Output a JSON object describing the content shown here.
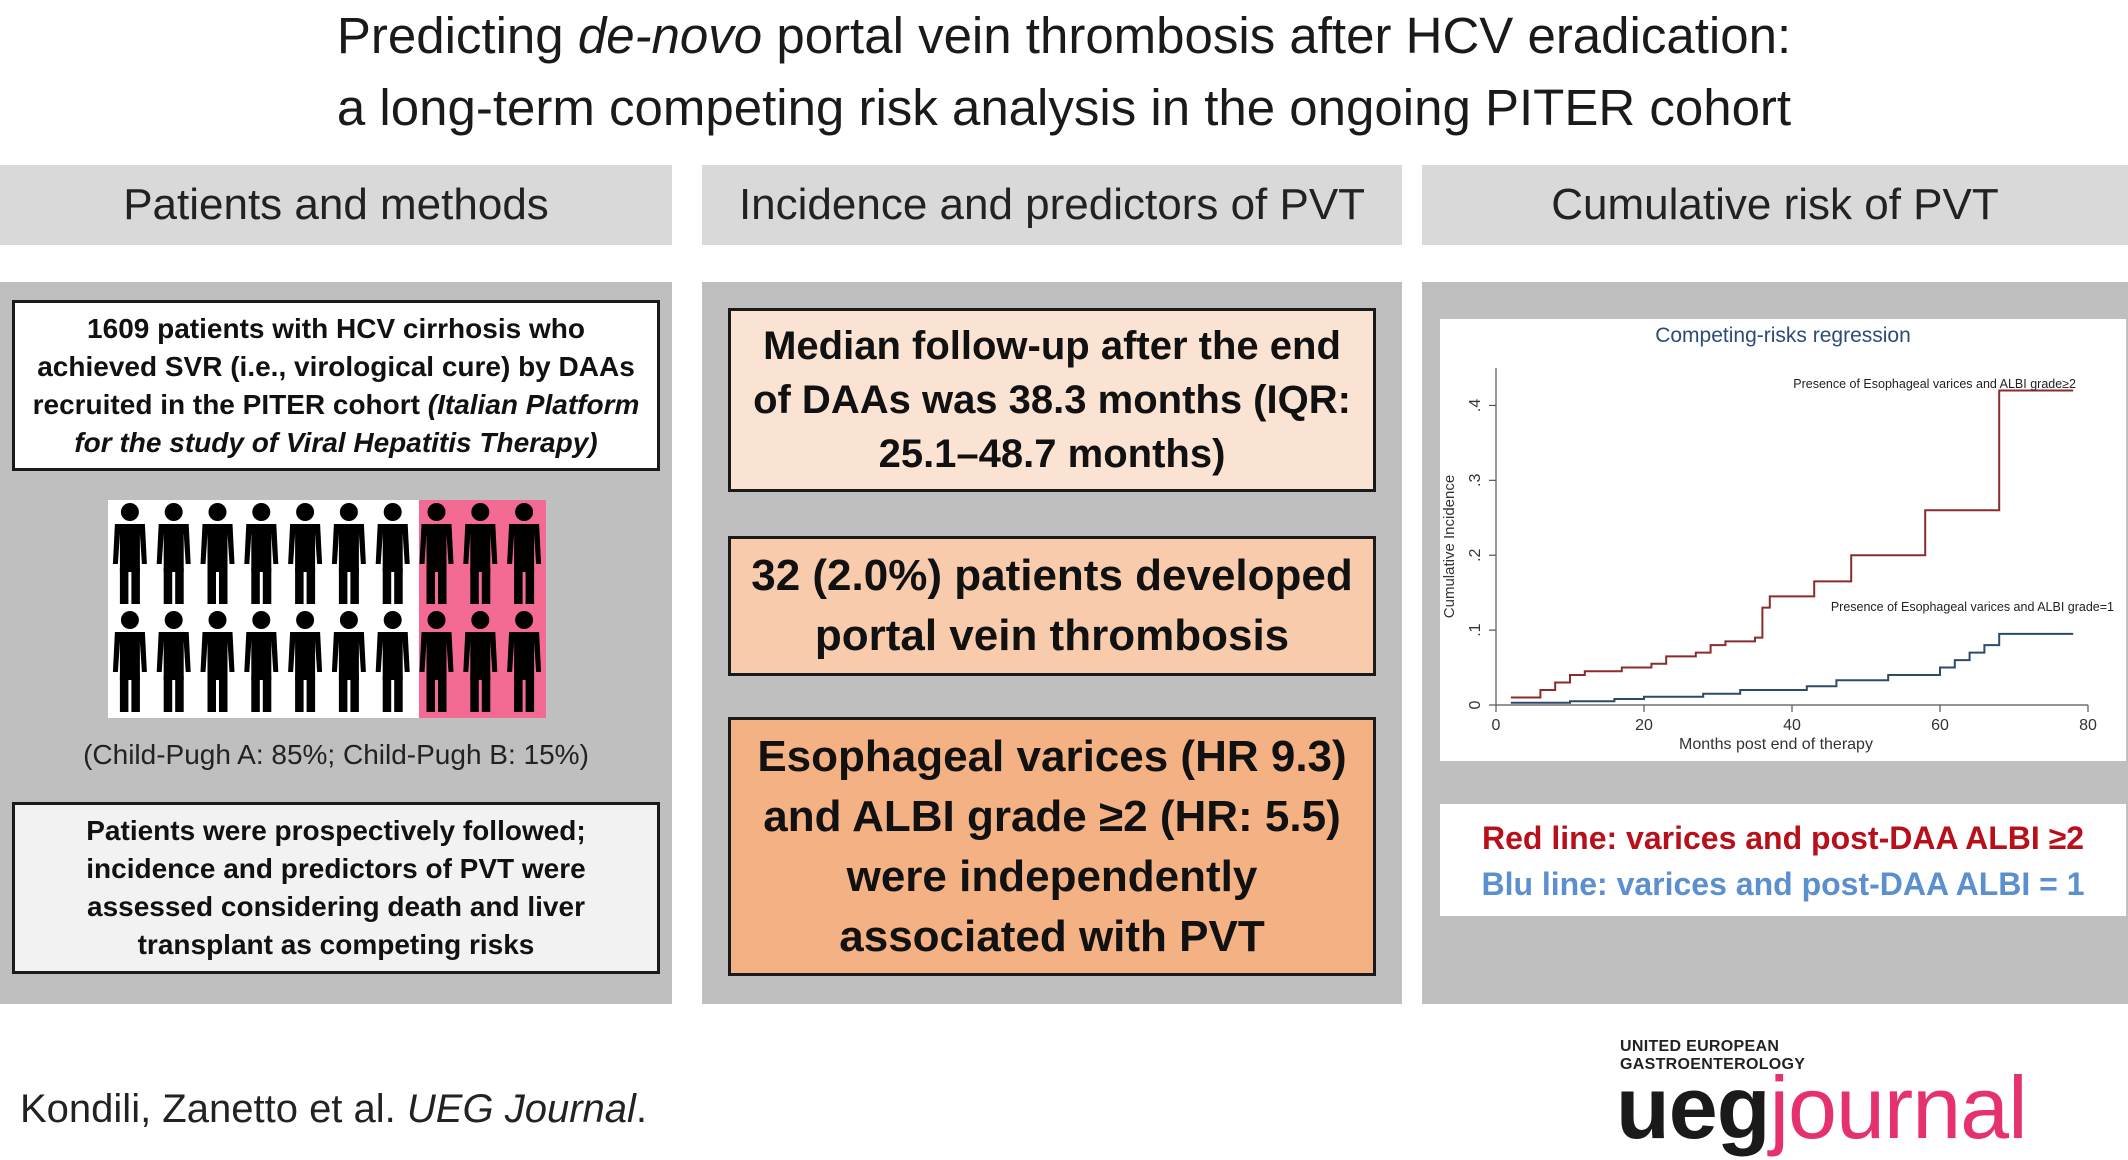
{
  "title": {
    "line1_before": "Predicting ",
    "line1_italic": "de-novo",
    "line1_after": " portal vein thrombosis after HCV eradication:",
    "line2": "a long-term competing risk analysis in the ongoing PITER cohort"
  },
  "columns": {
    "col1_header": "Patients and methods",
    "col2_header": "Incidence and predictors of PVT",
    "col3_header": "Cumulative risk of PVT"
  },
  "patients": {
    "box1_text": "1609 patients with HCV cirrhosis who achieved SVR (i.e., virological cure) by DAAs recruited in the PITER cohort ",
    "box1_italic": "(Italian Platform for the study of Viral Hepatitis Therapy)",
    "pictogram": {
      "icon": "person-icon",
      "rows": 2,
      "per_row": 10,
      "highlighted_per_row": 3,
      "background_color": "#ffffff",
      "highlight_color": "#f36a92",
      "figure_color": "#000000"
    },
    "child_pugh": "(Child-Pugh A: 85%; Child-Pugh B: 15%)",
    "box2_text": "Patients were prospectively followed; incidence and predictors of PVT were assessed considering death and liver transplant as competing risks"
  },
  "incidence": {
    "followup": "Median follow-up after the end of DAAs was 38.3 months (IQR: 25.1–48.7 months)",
    "pvt": "32 (2.0%) patients developed portal vein thrombosis",
    "predictors": "Esophageal varices (HR 9.3) and ALBI grade ≥2 (HR: 5.5) were independently associated with PVT",
    "colors": {
      "followup": "#fbe3d4",
      "pvt": "#f8cbad",
      "predictors": "#f4b183"
    }
  },
  "cumulative": {
    "legend_red": "Red line: varices and post-DAA ALBI ≥2",
    "legend_blue": "Blu line: varices and post-DAA ALBI = 1",
    "colors": {
      "red_text": "#b80f1a",
      "blue_text": "#5b8fcf"
    }
  },
  "chart_data": {
    "type": "line",
    "title": "Competing-risks regression",
    "xlabel": "Months post end of therapy",
    "ylabel": "Cumulative Incidence",
    "xlim": [
      0,
      80
    ],
    "ylim": [
      0,
      0.45
    ],
    "x_ticks": [
      0,
      20,
      40,
      60,
      80
    ],
    "x_tick_labels": [
      "0",
      "20",
      "40",
      "60",
      "80"
    ],
    "y_ticks": [
      0,
      0.1,
      0.2,
      0.3,
      0.4
    ],
    "y_tick_labels": [
      "0",
      ".1",
      ".2",
      ".3",
      ".4"
    ],
    "grid": false,
    "step": true,
    "series": [
      {
        "name": "Presence of Esophageal varices and ALBI grade≥2",
        "color": "#8b2b2b",
        "points": [
          [
            2,
            0.01
          ],
          [
            6,
            0.02
          ],
          [
            8,
            0.03
          ],
          [
            10,
            0.04
          ],
          [
            12,
            0.045
          ],
          [
            17,
            0.05
          ],
          [
            21,
            0.055
          ],
          [
            23,
            0.065
          ],
          [
            27,
            0.07
          ],
          [
            29,
            0.08
          ],
          [
            31,
            0.085
          ],
          [
            35,
            0.09
          ],
          [
            36,
            0.13
          ],
          [
            37,
            0.145
          ],
          [
            43,
            0.165
          ],
          [
            48,
            0.2
          ],
          [
            58,
            0.26
          ],
          [
            68,
            0.42
          ],
          [
            78,
            0.42
          ]
        ]
      },
      {
        "name": "Presence of Esophageal varices and ALBI grade=1",
        "color": "#2c4a6a",
        "points": [
          [
            2,
            0.003
          ],
          [
            10,
            0.005
          ],
          [
            16,
            0.008
          ],
          [
            20,
            0.011
          ],
          [
            28,
            0.015
          ],
          [
            33,
            0.02
          ],
          [
            42,
            0.025
          ],
          [
            46,
            0.033
          ],
          [
            53,
            0.04
          ],
          [
            60,
            0.05
          ],
          [
            62,
            0.06
          ],
          [
            64,
            0.07
          ],
          [
            66,
            0.08
          ],
          [
            68,
            0.095
          ],
          [
            78,
            0.095
          ]
        ]
      }
    ]
  },
  "footer": {
    "citation_authors": "Kondili, Zanetto et al. ",
    "citation_journal": "UEG Journal",
    "citation_end": ".",
    "logo_line1": "UNITED EUROPEAN",
    "logo_line2": "GASTROENTEROLOGY",
    "logo_ueg": "ueg",
    "logo_journal": "journal"
  }
}
